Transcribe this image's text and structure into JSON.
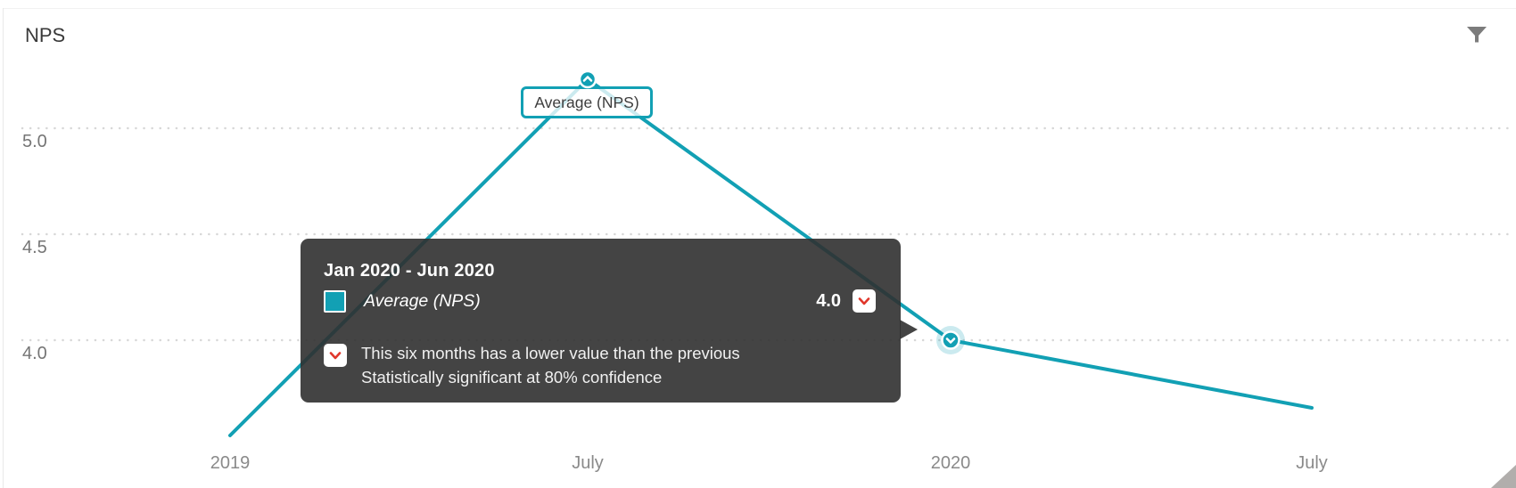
{
  "panel": {
    "title": "NPS"
  },
  "chart_data": {
    "type": "line",
    "title": "NPS",
    "categories": [
      "2019",
      "July",
      "2020",
      "July"
    ],
    "series": [
      {
        "name": "Average (NPS)",
        "values": [
          3.55,
          5.23,
          4.0,
          3.68
        ],
        "color": "#12a0b4"
      }
    ],
    "y_ticks": [
      "5.0",
      "4.5",
      "4.0"
    ],
    "ylim": [
      3.4,
      5.45
    ],
    "grid": "horizontal-dotted",
    "legend_position": "label-box-attached-to-peak",
    "highlighted_point": {
      "category_index": 2,
      "period": "Jan 2020 - Jun 2020",
      "value": 4.0,
      "trend": "down"
    }
  },
  "series_label": {
    "text": "Average (NPS)"
  },
  "tooltip": {
    "title": "Jan 2020 - Jun 2020",
    "series_name": "Average (NPS)",
    "value": "4.0",
    "note_line1": "This six months has a lower value than the previous",
    "note_line2": "Statistically significant at 80% confidence"
  },
  "icons": {
    "filter": "funnel",
    "trend_down": "chevron-down",
    "peak_marker": "chevron-up",
    "resize": "corner-triangle"
  },
  "colors": {
    "accent_teal": "#12a0b4",
    "trend_red": "#e0372b",
    "tooltip_bg": "rgba(48,48,48,0.9)",
    "grid": "#d7d7d7",
    "axis_text": "#8a8a8a"
  }
}
